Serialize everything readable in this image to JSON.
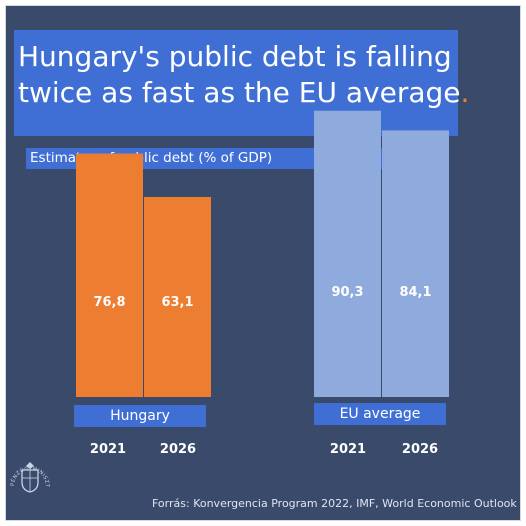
{
  "header": {
    "title": "Hungary's public debt is falling\ntwice as fast as the EU average",
    "title_dot": "."
  },
  "chart_data": {
    "type": "bar",
    "subtitle": "Estimates of public debt (% of GDP)",
    "x_groups": [
      "Hungary",
      "EU average"
    ],
    "categories": [
      "2021",
      "2026"
    ],
    "series": [
      {
        "group": "Hungary",
        "values": [
          76.8,
          63.1
        ],
        "labels": [
          "76,8",
          "63,1"
        ],
        "color": "#ed7d31"
      },
      {
        "group": "EU average",
        "values": [
          90.3,
          84.1
        ],
        "labels": [
          "90,3",
          "84,1"
        ],
        "color": "#8faadc"
      }
    ],
    "ylim": [
      0,
      100
    ],
    "grid": false,
    "legend": "none"
  },
  "footer": {
    "source": "Forrás:  Konvergencia Program 2022, IMF, World Economic Outlook",
    "seal_text": "PÉNZÜGYMINISZTÉRIUM"
  },
  "colors": {
    "background": "#3a4a6b",
    "accent_blue": "#3f6fd4",
    "hungary": "#ed7d31",
    "eu": "#8faadc",
    "text": "#ffffff"
  }
}
